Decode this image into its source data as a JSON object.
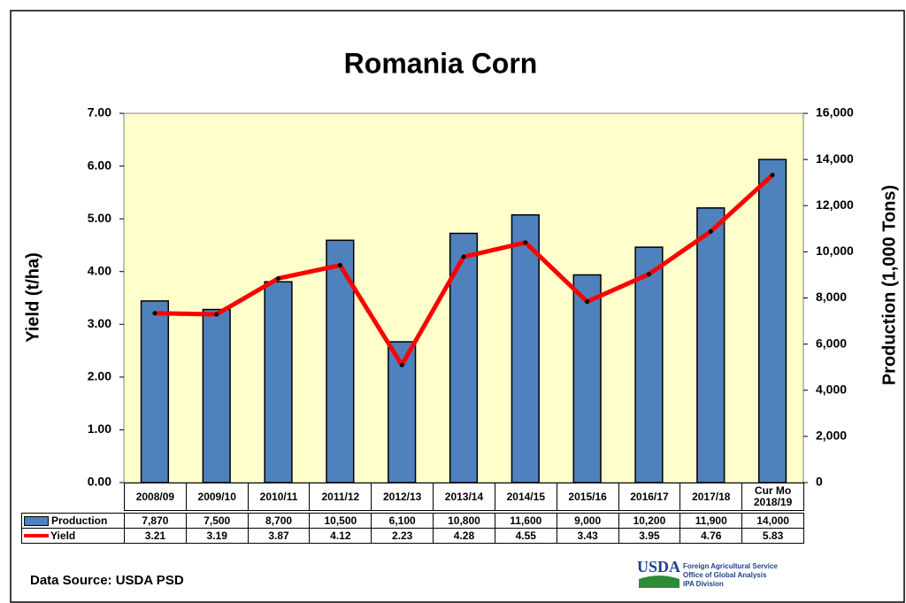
{
  "chart_data": {
    "type": "bar_line",
    "title": "Romania Corn",
    "y_label": "Yield (t/ha)",
    "y2_label": "Production (1,000 Tons)",
    "source": "Data Source: USDA PSD",
    "logo": {
      "mark": "USDA",
      "lines": [
        "Foreign Agricultural Service",
        "Office of Global Analysis",
        "IPA Division"
      ]
    },
    "categories": [
      "2008/09",
      "2009/10",
      "2010/11",
      "2011/12",
      "2012/13",
      "2013/14",
      "2014/15",
      "2015/16",
      "2016/17",
      "2017/18",
      "Cur Mo 2018/19"
    ],
    "series": [
      {
        "name": "Production",
        "color": "#4f81bd",
        "axis": "y2",
        "kind": "bar",
        "values": [
          7870,
          7500,
          8700,
          10500,
          6100,
          10800,
          11600,
          9000,
          10200,
          11900,
          14000
        ],
        "value_labels": [
          "7,870",
          "7,500",
          "8,700",
          "10,500",
          "6,100",
          "10,800",
          "11,600",
          "9,000",
          "10,200",
          "11,900",
          "14,000"
        ]
      },
      {
        "name": "Yield",
        "color": "#ff0000",
        "axis": "y",
        "kind": "line",
        "values": [
          3.21,
          3.19,
          3.87,
          4.12,
          2.23,
          4.28,
          4.55,
          3.43,
          3.95,
          4.76,
          5.83
        ]
      }
    ],
    "ylim": [
      0,
      7
    ],
    "yticks": [
      {
        "value": 0,
        "label": "0.00"
      },
      {
        "value": 1,
        "label": "1.00"
      },
      {
        "value": 2,
        "label": "2.00"
      },
      {
        "value": 3,
        "label": "3.00"
      },
      {
        "value": 4,
        "label": "4.00"
      },
      {
        "value": 5,
        "label": "5.00"
      },
      {
        "value": 6,
        "label": "6.00"
      },
      {
        "value": 7,
        "label": "7.00"
      }
    ],
    "y2lim": [
      0,
      16000
    ],
    "y2ticks": [
      0,
      {
        "value": 2000,
        "label": "2,000"
      },
      {
        "value": 4000,
        "label": "4,000"
      },
      {
        "value": 6000,
        "label": "6,000"
      },
      {
        "value": 8000,
        "label": "8,000"
      },
      {
        "value": 10000,
        "label": "10,000"
      },
      {
        "value": 12000,
        "label": "12,000"
      },
      {
        "value": 14000,
        "label": "14,000"
      },
      {
        "value": 16000,
        "label": "16,000"
      }
    ],
    "plot_background": "#ffffcc"
  }
}
